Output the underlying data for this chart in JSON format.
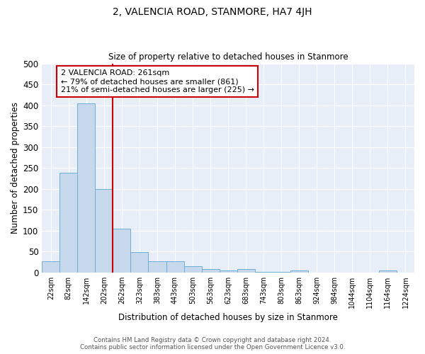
{
  "title": "2, VALENCIA ROAD, STANMORE, HA7 4JH",
  "subtitle": "Size of property relative to detached houses in Stanmore",
  "xlabel": "Distribution of detached houses by size in Stanmore",
  "ylabel": "Number of detached properties",
  "bin_labels": [
    "22sqm",
    "82sqm",
    "142sqm",
    "202sqm",
    "262sqm",
    "323sqm",
    "383sqm",
    "443sqm",
    "503sqm",
    "563sqm",
    "623sqm",
    "683sqm",
    "743sqm",
    "803sqm",
    "863sqm",
    "924sqm",
    "984sqm",
    "1044sqm",
    "1104sqm",
    "1164sqm",
    "1224sqm"
  ],
  "bar_heights": [
    27,
    238,
    405,
    200,
    105,
    49,
    26,
    26,
    14,
    8,
    5,
    8,
    2,
    2,
    5,
    0,
    0,
    0,
    0,
    5,
    0
  ],
  "bar_color": "#c8d8ec",
  "bar_edge_color": "#6baed6",
  "background_color": "#e8eef8",
  "grid_color": "#ffffff",
  "annotation_text": "2 VALENCIA ROAD: 261sqm\n← 79% of detached houses are smaller (861)\n21% of semi-detached houses are larger (225) →",
  "annotation_box_color": "#ffffff",
  "annotation_box_edge": "#cc0000",
  "red_line_color": "#cc0000",
  "ylim": [
    0,
    500
  ],
  "yticks": [
    0,
    50,
    100,
    150,
    200,
    250,
    300,
    350,
    400,
    450,
    500
  ],
  "footer_line1": "Contains HM Land Registry data © Crown copyright and database right 2024.",
  "footer_line2": "Contains public sector information licensed under the Open Government Licence v3.0."
}
